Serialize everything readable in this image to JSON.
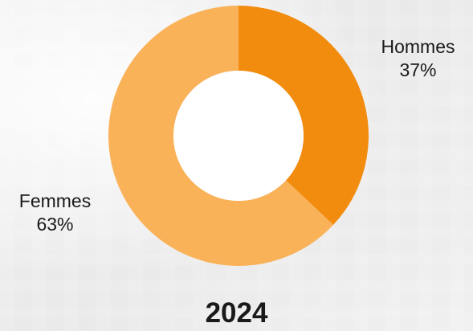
{
  "chart_data": {
    "type": "pie",
    "variant": "donut",
    "title": "2024",
    "categories": [
      "Hommes",
      "Femmes"
    ],
    "values": [
      37,
      63
    ],
    "value_labels": [
      "37%",
      "63%"
    ],
    "colors": [
      "#F28C0F",
      "#FAB259"
    ]
  }
}
